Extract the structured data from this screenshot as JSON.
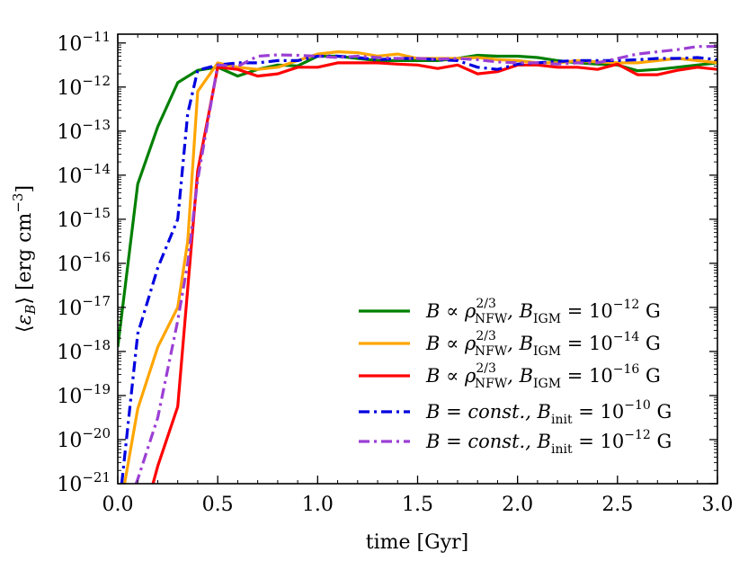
{
  "chart_data": {
    "type": "line",
    "xlabel": "time [Gyr]",
    "ylabel": "⟨εB⟩ [erg cm⁻³]",
    "ylabel_parts": {
      "pre": "⟨",
      "eps": "ε",
      "sub": "B",
      "post": "⟩ [erg cm",
      "sup": "−3",
      "end": "]"
    },
    "xlim": [
      0.0,
      3.0
    ],
    "ylim_exp": [
      -21,
      -10.8
    ],
    "yscale": "log",
    "x_ticks": [
      "0.0",
      "0.5",
      "1.0",
      "1.5",
      "2.0",
      "2.5",
      "3.0"
    ],
    "y_tick_exponents": [
      "−21",
      "−20",
      "−19",
      "−18",
      "−17",
      "−16",
      "−15",
      "−14",
      "−13",
      "−12",
      "−11"
    ],
    "y_tick_base": "10",
    "legend_position": "lower-right",
    "series": [
      {
        "legend": {
          "a": "B ∝ ρ",
          "a_sup": "2/3",
          "a_sub": "NFW",
          "b": ", B",
          "b_sub": "IGM",
          "c": " = 10",
          "c_sup": "−12",
          "d": " G"
        },
        "color": "#008000",
        "style": "solid",
        "points": [
          [
            0.0,
            -17.9
          ],
          [
            0.1,
            -14.2
          ],
          [
            0.2,
            -12.9
          ],
          [
            0.3,
            -11.9
          ],
          [
            0.4,
            -11.62
          ],
          [
            0.5,
            -11.55
          ],
          [
            0.6,
            -11.75
          ],
          [
            0.7,
            -11.6
          ],
          [
            0.8,
            -11.5
          ],
          [
            0.9,
            -11.52
          ],
          [
            1.0,
            -11.3
          ],
          [
            1.1,
            -11.3
          ],
          [
            1.2,
            -11.35
          ],
          [
            1.3,
            -11.4
          ],
          [
            1.4,
            -11.4
          ],
          [
            1.5,
            -11.4
          ],
          [
            1.6,
            -11.4
          ],
          [
            1.7,
            -11.35
          ],
          [
            1.8,
            -11.28
          ],
          [
            1.9,
            -11.3
          ],
          [
            2.0,
            -11.3
          ],
          [
            2.1,
            -11.33
          ],
          [
            2.2,
            -11.4
          ],
          [
            2.3,
            -11.45
          ],
          [
            2.4,
            -11.48
          ],
          [
            2.5,
            -11.5
          ],
          [
            2.6,
            -11.63
          ],
          [
            2.7,
            -11.6
          ],
          [
            2.8,
            -11.55
          ],
          [
            2.9,
            -11.5
          ],
          [
            3.0,
            -11.45
          ]
        ]
      },
      {
        "legend": {
          "a": "B ∝ ρ",
          "a_sup": "2/3",
          "a_sub": "NFW",
          "b": ", B",
          "b_sub": "IGM",
          "c": " = 10",
          "c_sup": "−14",
          "d": " G"
        },
        "color": "#ffa500",
        "style": "solid",
        "points": [
          [
            0.03,
            -21.1
          ],
          [
            0.1,
            -19.3
          ],
          [
            0.2,
            -17.9
          ],
          [
            0.3,
            -17.0
          ],
          [
            0.35,
            -15.5
          ],
          [
            0.4,
            -12.1
          ],
          [
            0.5,
            -11.45
          ],
          [
            0.6,
            -11.55
          ],
          [
            0.7,
            -11.6
          ],
          [
            0.8,
            -11.55
          ],
          [
            0.9,
            -11.4
          ],
          [
            1.0,
            -11.25
          ],
          [
            1.1,
            -11.2
          ],
          [
            1.2,
            -11.22
          ],
          [
            1.3,
            -11.3
          ],
          [
            1.4,
            -11.25
          ],
          [
            1.5,
            -11.35
          ],
          [
            1.6,
            -11.35
          ],
          [
            1.7,
            -11.35
          ],
          [
            1.8,
            -11.33
          ],
          [
            1.9,
            -11.38
          ],
          [
            2.0,
            -11.4
          ],
          [
            2.1,
            -11.45
          ],
          [
            2.2,
            -11.45
          ],
          [
            2.3,
            -11.4
          ],
          [
            2.4,
            -11.43
          ],
          [
            2.5,
            -11.45
          ],
          [
            2.6,
            -11.45
          ],
          [
            2.7,
            -11.4
          ],
          [
            2.8,
            -11.35
          ],
          [
            2.9,
            -11.4
          ],
          [
            3.0,
            -11.45
          ]
        ]
      },
      {
        "legend": {
          "a": "B ∝ ρ",
          "a_sup": "2/3",
          "a_sub": "NFW",
          "b": ", B",
          "b_sub": "IGM",
          "c": " = 10",
          "c_sup": "−16",
          "d": " G"
        },
        "color": "#ff0000",
        "style": "solid",
        "points": [
          [
            0.17,
            -21.1
          ],
          [
            0.2,
            -20.6
          ],
          [
            0.3,
            -19.25
          ],
          [
            0.4,
            -13.9
          ],
          [
            0.5,
            -11.55
          ],
          [
            0.6,
            -11.6
          ],
          [
            0.7,
            -11.75
          ],
          [
            0.8,
            -11.7
          ],
          [
            0.9,
            -11.55
          ],
          [
            1.0,
            -11.55
          ],
          [
            1.1,
            -11.45
          ],
          [
            1.2,
            -11.45
          ],
          [
            1.3,
            -11.45
          ],
          [
            1.4,
            -11.48
          ],
          [
            1.5,
            -11.5
          ],
          [
            1.6,
            -11.58
          ],
          [
            1.7,
            -11.5
          ],
          [
            1.8,
            -11.7
          ],
          [
            1.9,
            -11.65
          ],
          [
            2.0,
            -11.5
          ],
          [
            2.1,
            -11.5
          ],
          [
            2.2,
            -11.55
          ],
          [
            2.3,
            -11.55
          ],
          [
            2.4,
            -11.6
          ],
          [
            2.5,
            -11.48
          ],
          [
            2.6,
            -11.72
          ],
          [
            2.7,
            -11.72
          ],
          [
            2.8,
            -11.62
          ],
          [
            2.9,
            -11.55
          ],
          [
            3.0,
            -11.6
          ]
        ]
      },
      {
        "legend": {
          "a": "B = const., B",
          "a_sup": "",
          "a_sub": "init",
          "b": "",
          "b_sub": "",
          "c": " = 10",
          "c_sup": "−10",
          "d": " G"
        },
        "color": "#0000e0",
        "style": "dashdot",
        "points": [
          [
            0.02,
            -21.0
          ],
          [
            0.1,
            -17.6
          ],
          [
            0.2,
            -16.1
          ],
          [
            0.3,
            -15.0
          ],
          [
            0.35,
            -12.6
          ],
          [
            0.4,
            -11.62
          ],
          [
            0.5,
            -11.5
          ],
          [
            0.6,
            -11.45
          ],
          [
            0.7,
            -11.45
          ],
          [
            0.8,
            -11.4
          ],
          [
            0.9,
            -11.4
          ],
          [
            1.0,
            -11.3
          ],
          [
            1.1,
            -11.3
          ],
          [
            1.2,
            -11.33
          ],
          [
            1.3,
            -11.38
          ],
          [
            1.4,
            -11.35
          ],
          [
            1.5,
            -11.35
          ],
          [
            1.6,
            -11.38
          ],
          [
            1.7,
            -11.4
          ],
          [
            1.8,
            -11.55
          ],
          [
            1.9,
            -11.6
          ],
          [
            2.0,
            -11.48
          ],
          [
            2.1,
            -11.45
          ],
          [
            2.2,
            -11.42
          ],
          [
            2.3,
            -11.4
          ],
          [
            2.4,
            -11.4
          ],
          [
            2.5,
            -11.4
          ],
          [
            2.6,
            -11.38
          ],
          [
            2.7,
            -11.35
          ],
          [
            2.8,
            -11.35
          ],
          [
            2.9,
            -11.33
          ],
          [
            3.0,
            -11.38
          ]
        ]
      },
      {
        "legend": {
          "a": "B = const., B",
          "a_sup": "",
          "a_sub": "init",
          "b": "",
          "b_sub": "",
          "c": " = 10",
          "c_sup": "−12",
          "d": " G"
        },
        "color": "#9b3fd4",
        "style": "dashdot",
        "points": [
          [
            0.05,
            -21.5
          ],
          [
            0.1,
            -20.9
          ],
          [
            0.2,
            -19.5
          ],
          [
            0.3,
            -17.3
          ],
          [
            0.35,
            -16.0
          ],
          [
            0.4,
            -14.1
          ],
          [
            0.5,
            -11.5
          ],
          [
            0.6,
            -11.53
          ],
          [
            0.7,
            -11.3
          ],
          [
            0.8,
            -11.27
          ],
          [
            0.9,
            -11.28
          ],
          [
            1.0,
            -11.3
          ],
          [
            1.1,
            -11.33
          ],
          [
            1.2,
            -11.3
          ],
          [
            1.3,
            -11.33
          ],
          [
            1.4,
            -11.35
          ],
          [
            1.5,
            -11.35
          ],
          [
            1.6,
            -11.37
          ],
          [
            1.7,
            -11.35
          ],
          [
            1.8,
            -11.38
          ],
          [
            1.9,
            -11.43
          ],
          [
            2.0,
            -11.45
          ],
          [
            2.1,
            -11.45
          ],
          [
            2.2,
            -11.48
          ],
          [
            2.3,
            -11.45
          ],
          [
            2.4,
            -11.45
          ],
          [
            2.5,
            -11.35
          ],
          [
            2.6,
            -11.25
          ],
          [
            2.7,
            -11.2
          ],
          [
            2.8,
            -11.15
          ],
          [
            2.9,
            -11.08
          ],
          [
            3.0,
            -11.08
          ]
        ]
      }
    ]
  }
}
